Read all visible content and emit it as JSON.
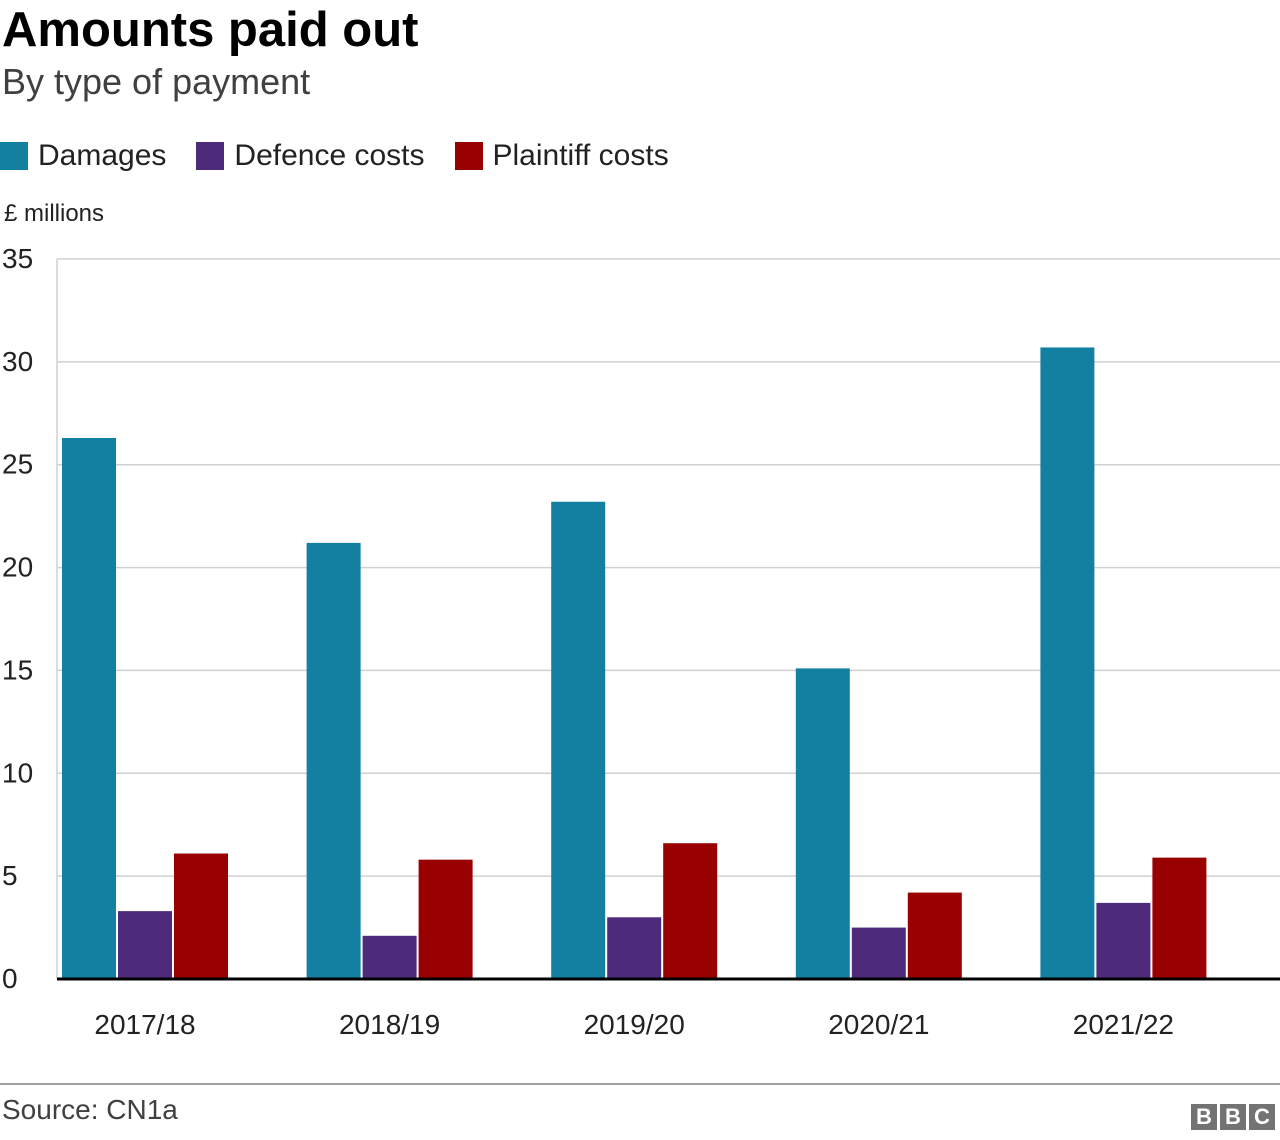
{
  "chart_data": {
    "type": "bar",
    "title": "Amounts paid out",
    "subtitle": "By type of payment",
    "ylabel": "£ millions",
    "xlabel": "",
    "ylim": [
      0,
      35
    ],
    "yticks": [
      "0",
      "5",
      "10",
      "15",
      "20",
      "25",
      "30",
      "35"
    ],
    "grid": true,
    "legend_position": "top-left",
    "categories": [
      "2017/18",
      "2018/19",
      "2019/20",
      "2020/21",
      "2021/22"
    ],
    "series": [
      {
        "name": "Damages",
        "color": "#1380A1",
        "values": [
          26.3,
          21.2,
          23.2,
          15.1,
          30.7
        ]
      },
      {
        "name": "Defence costs",
        "color": "#4D2B7A",
        "values": [
          3.3,
          2.1,
          3.0,
          2.5,
          3.7
        ]
      },
      {
        "name": "Plaintiff costs",
        "color": "#990000",
        "values": [
          6.1,
          5.8,
          6.6,
          4.2,
          5.9
        ]
      }
    ]
  },
  "footer": {
    "source": "Source: CN1a",
    "logo_letters": [
      "B",
      "B",
      "C"
    ]
  }
}
